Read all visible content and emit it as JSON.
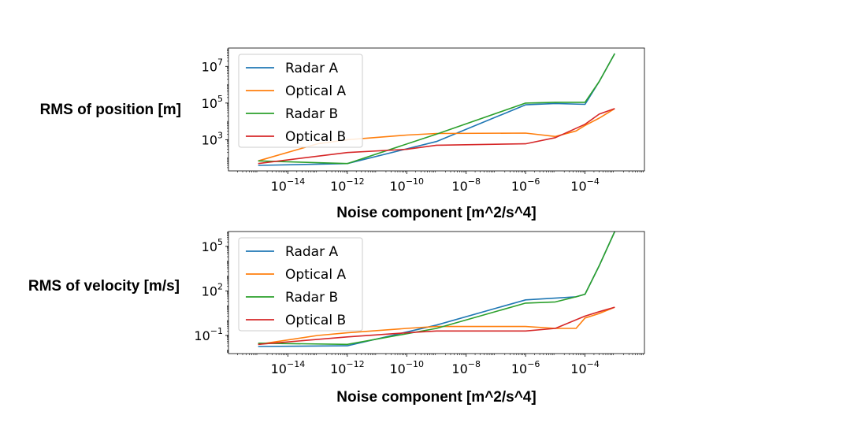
{
  "chart_data": [
    {
      "type": "line",
      "xscale": "log",
      "yscale": "log",
      "xlabel": "Noise component [m^2/s^4]",
      "ylabel": "RMS of position [m]",
      "xlim": [
        1e-16,
        0.01
      ],
      "ylim": [
        20,
        100000000.0
      ],
      "x_ticks": [
        1e-14,
        1e-12,
        1e-10,
        1e-08,
        1e-06,
        0.0001
      ],
      "x_tick_labels": [
        {
          "base": "10",
          "exp": "−14"
        },
        {
          "base": "10",
          "exp": "−12"
        },
        {
          "base": "10",
          "exp": "−10"
        },
        {
          "base": "10",
          "exp": "−8"
        },
        {
          "base": "10",
          "exp": "−6"
        },
        {
          "base": "10",
          "exp": "−4"
        }
      ],
      "y_ticks": [
        1000.0,
        100000.0,
        10000000.0
      ],
      "y_tick_labels": [
        {
          "base": "10",
          "exp": "3"
        },
        {
          "base": "10",
          "exp": "5"
        },
        {
          "base": "10",
          "exp": "7"
        }
      ],
      "legend": "upper-left",
      "series": [
        {
          "name": "Radar A",
          "color": "#1f77b4",
          "points": [
            [
              1e-15,
              40
            ],
            [
              1e-12,
              50
            ],
            [
              1e-09,
              800
            ],
            [
              1e-06,
              80000
            ],
            [
              1e-05,
              95000
            ],
            [
              0.0001,
              85000
            ],
            [
              0.0003,
              1500000.0
            ],
            [
              0.001,
              50000000.0
            ]
          ]
        },
        {
          "name": "Optical A",
          "color": "#ff7f0e",
          "points": [
            [
              1e-15,
              70
            ],
            [
              1e-13,
              600
            ],
            [
              1e-12,
              1000
            ],
            [
              1e-10,
              1800
            ],
            [
              1e-09,
              2200
            ],
            [
              1e-06,
              2300
            ],
            [
              1e-05,
              1500
            ],
            [
              5e-05,
              3000
            ],
            [
              0.0001,
              6000
            ],
            [
              0.0003,
              15000
            ],
            [
              0.001,
              50000
            ]
          ]
        },
        {
          "name": "Radar B",
          "color": "#2ca02c",
          "points": [
            [
              1e-15,
              70
            ],
            [
              1e-12,
              50
            ],
            [
              1e-09,
              2000
            ],
            [
              1e-06,
              100000
            ],
            [
              1e-05,
              110000
            ],
            [
              0.0001,
              110000
            ],
            [
              0.0003,
              1500000.0
            ],
            [
              0.001,
              50000000.0
            ]
          ]
        },
        {
          "name": "Optical B",
          "color": "#d62728",
          "points": [
            [
              1e-15,
              50
            ],
            [
              1e-12,
              200
            ],
            [
              1e-10,
              300
            ],
            [
              1e-09,
              500
            ],
            [
              1e-06,
              600
            ],
            [
              1e-05,
              1300
            ],
            [
              0.0001,
              7000
            ],
            [
              0.0003,
              25000
            ],
            [
              0.001,
              50000
            ]
          ]
        }
      ]
    },
    {
      "type": "line",
      "xscale": "log",
      "yscale": "log",
      "xlabel": "Noise component [m^2/s^4]",
      "ylabel": "RMS of velocity [m/s]",
      "xlim": [
        1e-16,
        0.01
      ],
      "ylim": [
        0.006,
        1000000.0
      ],
      "x_ticks": [
        1e-14,
        1e-12,
        1e-10,
        1e-08,
        1e-06,
        0.0001
      ],
      "x_tick_labels": [
        {
          "base": "10",
          "exp": "−14"
        },
        {
          "base": "10",
          "exp": "−12"
        },
        {
          "base": "10",
          "exp": "−10"
        },
        {
          "base": "10",
          "exp": "−8"
        },
        {
          "base": "10",
          "exp": "−6"
        },
        {
          "base": "10",
          "exp": "−4"
        }
      ],
      "y_ticks": [
        0.1,
        100,
        100000
      ],
      "y_tick_labels": [
        {
          "base": "10",
          "exp": "−1"
        },
        {
          "base": "10",
          "exp": "2"
        },
        {
          "base": "10",
          "exp": "5"
        }
      ],
      "legend": "upper-left",
      "series": [
        {
          "name": "Radar A",
          "color": "#1f77b4",
          "points": [
            [
              1e-15,
              0.018
            ],
            [
              1e-12,
              0.02
            ],
            [
              1e-09,
              0.5
            ],
            [
              1e-06,
              25
            ],
            [
              5e-05,
              40
            ],
            [
              0.0001,
              60
            ],
            [
              0.0003,
              5000
            ],
            [
              0.001,
              1000000.0
            ]
          ]
        },
        {
          "name": "Optical A",
          "color": "#ff7f0e",
          "points": [
            [
              1e-15,
              0.025
            ],
            [
              1e-13,
              0.1
            ],
            [
              1e-12,
              0.15
            ],
            [
              1e-10,
              0.3
            ],
            [
              1e-09,
              0.4
            ],
            [
              1e-06,
              0.4
            ],
            [
              1e-05,
              0.3
            ],
            [
              5e-05,
              0.3
            ],
            [
              0.0001,
              1.5
            ],
            [
              0.0003,
              3
            ],
            [
              0.001,
              8
            ]
          ]
        },
        {
          "name": "Radar B",
          "color": "#2ca02c",
          "points": [
            [
              1e-15,
              0.03
            ],
            [
              1e-12,
              0.025
            ],
            [
              1e-09,
              0.3
            ],
            [
              1e-06,
              15
            ],
            [
              1e-05,
              18
            ],
            [
              5e-05,
              40
            ],
            [
              0.0001,
              60
            ],
            [
              0.0003,
              5000
            ],
            [
              0.001,
              1000000.0
            ]
          ]
        },
        {
          "name": "Optical B",
          "color": "#d62728",
          "points": [
            [
              1e-15,
              0.025
            ],
            [
              1e-12,
              0.08
            ],
            [
              1e-10,
              0.15
            ],
            [
              1e-09,
              0.2
            ],
            [
              1e-06,
              0.2
            ],
            [
              1e-05,
              0.3
            ],
            [
              0.0001,
              2
            ],
            [
              0.0003,
              4
            ],
            [
              0.001,
              8
            ]
          ]
        }
      ]
    }
  ]
}
